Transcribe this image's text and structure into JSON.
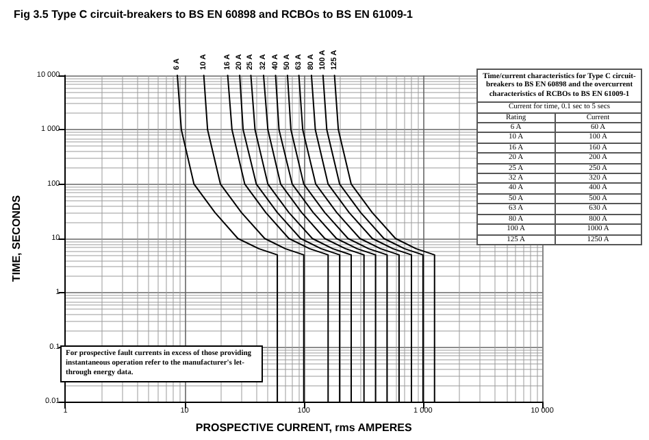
{
  "chart_data": {
    "type": "line",
    "title": "Fig 3.5  Type C circuit-breakers to BS EN 60898 and RCBOs to BS EN 61009-1",
    "xlabel": "PROSPECTIVE CURRENT, rms AMPERES",
    "ylabel": "TIME, SECONDS",
    "log": "xy",
    "grid": true,
    "legend": false,
    "marker": "none",
    "line_style": "solid",
    "xlim": [
      1,
      10000
    ],
    "xticks": [
      1,
      10,
      100,
      {
        "value": 1000,
        "label": "1 000"
      },
      {
        "value": 10000,
        "label": "10 000"
      }
    ],
    "ylim": [
      0.01,
      10000
    ],
    "yticks": [
      0.01,
      0.1,
      1,
      10,
      100,
      {
        "value": 1000,
        "label": "1 000"
      },
      {
        "value": 10000,
        "label": "10 000"
      }
    ],
    "series": [
      {
        "name": "6 A",
        "color": "#000000",
        "x": [
          8.7,
          9.4,
          12,
          18,
          28,
          42,
          60,
          60
        ],
        "values": [
          10000,
          1000,
          100,
          30,
          10,
          6.5,
          5,
          0.01
        ]
      },
      {
        "name": "10 A",
        "color": "#000000",
        "x": [
          14.5,
          15.6,
          20,
          30,
          47,
          70,
          100,
          100
        ],
        "values": [
          10000,
          1000,
          100,
          30,
          10,
          6.5,
          5,
          0.01
        ]
      },
      {
        "name": "16 A",
        "color": "#000000",
        "x": [
          23,
          25,
          32,
          48,
          75,
          112,
          160,
          160
        ],
        "values": [
          10000,
          1000,
          100,
          30,
          10,
          6.5,
          5,
          0.01
        ]
      },
      {
        "name": "20 A",
        "color": "#000000",
        "x": [
          29,
          31,
          40,
          60,
          94,
          140,
          200,
          200
        ],
        "values": [
          10000,
          1000,
          100,
          30,
          10,
          6.5,
          5,
          0.01
        ]
      },
      {
        "name": "25 A",
        "color": "#000000",
        "x": [
          36,
          39,
          50,
          75,
          118,
          175,
          250,
          250
        ],
        "values": [
          10000,
          1000,
          100,
          30,
          10,
          6.5,
          5,
          0.01
        ]
      },
      {
        "name": "32 A",
        "color": "#000000",
        "x": [
          46,
          50,
          64,
          96,
          150,
          224,
          320,
          320
        ],
        "values": [
          10000,
          1000,
          100,
          30,
          10,
          6.5,
          5,
          0.01
        ]
      },
      {
        "name": "40 A",
        "color": "#000000",
        "x": [
          58,
          62,
          80,
          120,
          188,
          280,
          400,
          400
        ],
        "values": [
          10000,
          1000,
          100,
          30,
          10,
          6.5,
          5,
          0.01
        ]
      },
      {
        "name": "50 A",
        "color": "#000000",
        "x": [
          73,
          78,
          100,
          150,
          235,
          350,
          500,
          500
        ],
        "values": [
          10000,
          1000,
          100,
          30,
          10,
          6.5,
          5,
          0.01
        ]
      },
      {
        "name": "63 A",
        "color": "#000000",
        "x": [
          91,
          98,
          126,
          189,
          296,
          441,
          630,
          630
        ],
        "values": [
          10000,
          1000,
          100,
          30,
          10,
          6.5,
          5,
          0.01
        ]
      },
      {
        "name": "80 A",
        "color": "#000000",
        "x": [
          116,
          125,
          160,
          240,
          376,
          560,
          800,
          800
        ],
        "values": [
          10000,
          1000,
          100,
          30,
          10,
          6.5,
          5,
          0.01
        ]
      },
      {
        "name": "100 A",
        "color": "#000000",
        "x": [
          145,
          156,
          200,
          300,
          470,
          700,
          1000,
          1000
        ],
        "values": [
          10000,
          1000,
          100,
          30,
          10,
          6.5,
          5,
          0.01
        ]
      },
      {
        "name": "125 A",
        "color": "#000000",
        "x": [
          181,
          195,
          250,
          375,
          588,
          875,
          1250,
          1250
        ],
        "values": [
          10000,
          1000,
          100,
          30,
          10,
          6.5,
          5,
          0.01
        ]
      }
    ],
    "annotations": [
      "For prospective fault currents in excess of those providing instantaneous operation refer to the manufacturer's let-through energy data.",
      "Time/current characteristics for Type C circuit-breakers to BS EN 60898 and the overcurrent characteristics of RCBOs to BS EN 61009-1",
      "Current for time, 0.1 sec to 5 secs",
      "Rating",
      "Current",
      "6 A",
      "60 A",
      "10 A",
      "100 A",
      "16 A",
      "160 A",
      "20 A",
      "200 A",
      "25 A",
      "250 A",
      "32 A",
      "320 A",
      "40 A",
      "400 A",
      "50 A",
      "500 A",
      "63 A",
      "630 A",
      "80 A",
      "800 A",
      "100 A",
      "1000 A",
      "125 A",
      "1250 A"
    ]
  }
}
